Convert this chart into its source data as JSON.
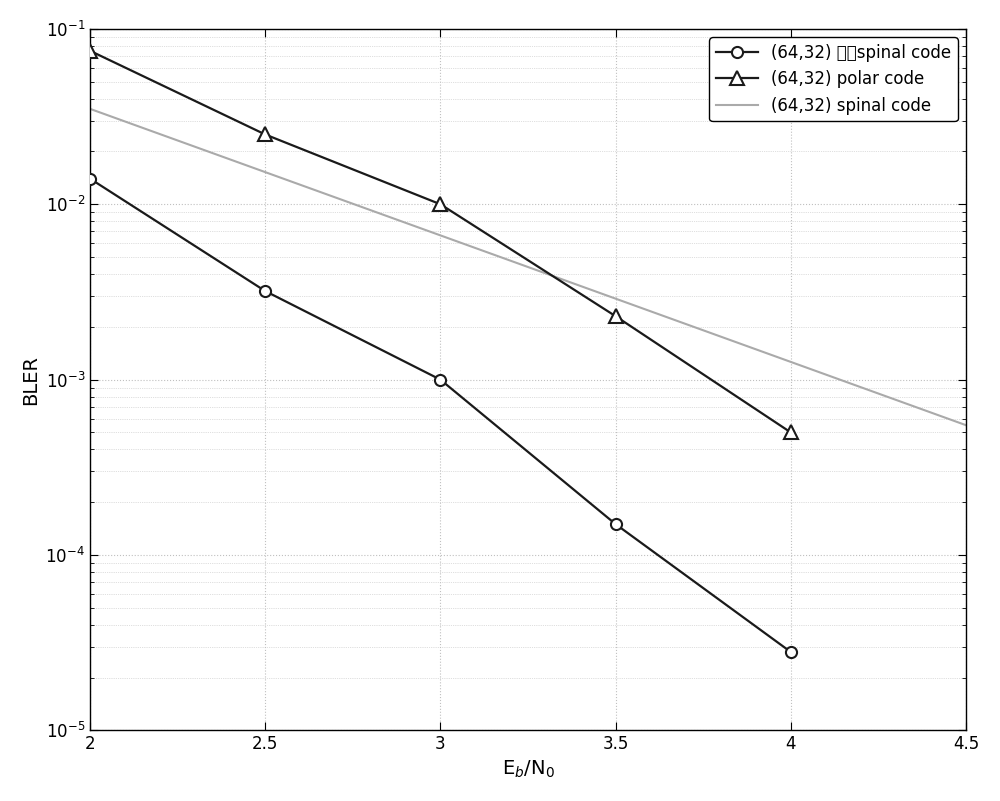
{
  "series": [
    {
      "label": "(64,32) 级联spinal code",
      "x": [
        2.0,
        2.5,
        3.0,
        3.5,
        4.0
      ],
      "y": [
        0.014,
        0.0032,
        0.001,
        0.00015,
        2.8e-05
      ],
      "color": "#1a1a1a",
      "marker": "o",
      "markersize": 8,
      "linewidth": 1.6,
      "zorder": 3
    },
    {
      "label": "(64,32) polar code",
      "x": [
        2.0,
        2.5,
        3.0,
        3.5,
        4.0
      ],
      "y": [
        0.075,
        0.025,
        0.01,
        0.0023,
        0.0005
      ],
      "color": "#1a1a1a",
      "marker": "^",
      "markersize": 10,
      "linewidth": 1.6,
      "zorder": 3
    },
    {
      "label": "(64,32) spinal code",
      "x": [
        2.0,
        4.5
      ],
      "y": [
        0.035,
        0.00055
      ],
      "color": "#aaaaaa",
      "marker": null,
      "markersize": 0,
      "linewidth": 1.5,
      "zorder": 2
    }
  ],
  "xlim": [
    2.0,
    4.5
  ],
  "ylim": [
    1e-05,
    0.1
  ],
  "xlabel": "E$_b$/N$_0$",
  "ylabel": "BLER",
  "xticks": [
    2.0,
    2.5,
    3.0,
    3.5,
    4.0,
    4.5
  ],
  "xtick_labels": [
    "2",
    "2.5",
    "3",
    "3.5",
    "4",
    "4.5"
  ],
  "grid_color": "#c0c0c0",
  "grid_style": ":",
  "background_color": "#ffffff",
  "legend_loc": "upper right",
  "axis_fontsize": 14,
  "tick_fontsize": 12,
  "legend_fontsize": 12
}
